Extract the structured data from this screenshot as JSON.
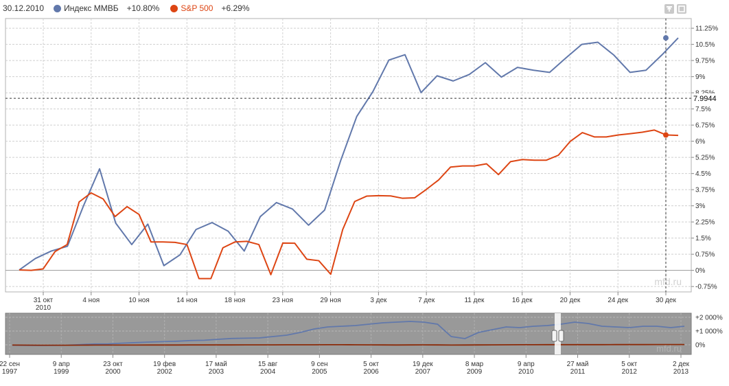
{
  "legend": {
    "date": "30.12.2010",
    "series": [
      {
        "name": "Индекс ММВБ",
        "change": "+10.80%",
        "color": "#6178ab"
      },
      {
        "name": "S&P 500",
        "change": "+6.29%",
        "color": "#dd4513"
      }
    ]
  },
  "crosshair": {
    "value_label": "7.9944"
  },
  "watermark": "mfd.ru",
  "toolbar": {
    "icons": [
      "pan-icon",
      "zoom-box-icon",
      "arrow-up-icon",
      "arrow-left-icon",
      "reset-icon",
      "arrow-right-icon",
      "arrow-down-icon",
      "zoom-in-icon",
      "zoom-out-icon",
      "export-icon",
      "maximize-icon"
    ]
  },
  "chart_data": [
    {
      "type": "line",
      "ylim": [
        -1.0,
        11.7
      ],
      "y_ticks": [
        -0.75,
        0,
        0.75,
        1.5,
        2.25,
        3,
        3.75,
        4.5,
        5.25,
        6,
        6.75,
        7.5,
        8.25,
        9,
        9.75,
        10.5,
        11.25
      ],
      "y_tick_labels": [
        "-0.75%",
        "0%",
        "0.75%",
        "1.5%",
        "2.25%",
        "3%",
        "3.75%",
        "4.5%",
        "5.25%",
        "6%",
        "6.75%",
        "7.5%",
        "8.25%",
        "9%",
        "9.75%",
        "10.5%",
        "11.25%"
      ],
      "x_ticks": [
        {
          "label": "31 окт",
          "sub": "2010"
        },
        {
          "label": "4 ноя",
          "sub": ""
        },
        {
          "label": "10 ноя",
          "sub": ""
        },
        {
          "label": "14 ноя",
          "sub": ""
        },
        {
          "label": "18 ноя",
          "sub": ""
        },
        {
          "label": "23 ноя",
          "sub": ""
        },
        {
          "label": "29 ноя",
          "sub": ""
        },
        {
          "label": "3 дек",
          "sub": ""
        },
        {
          "label": "7 дек",
          "sub": ""
        },
        {
          "label": "11 дек",
          "sub": ""
        },
        {
          "label": "16 дек",
          "sub": ""
        },
        {
          "label": "20 дек",
          "sub": ""
        },
        {
          "label": "24 дек",
          "sub": ""
        },
        {
          "label": "30 дек",
          "sub": ""
        }
      ],
      "series": [
        {
          "name": "Индекс ММВБ",
          "color": "#6178ab",
          "values": [
            0.02,
            0.55,
            0.9,
            1.12,
            3.0,
            4.72,
            2.2,
            1.2,
            2.15,
            0.22,
            0.72,
            1.9,
            2.22,
            1.82,
            0.9,
            2.5,
            3.15,
            2.85,
            2.1,
            2.8,
            5.1,
            7.15,
            8.3,
            9.77,
            10.02,
            8.26,
            9.04,
            8.8,
            9.1,
            9.65,
            8.98,
            9.43,
            9.3,
            9.2,
            9.86,
            10.5,
            10.6,
            10.0,
            9.2,
            9.3,
            10.02,
            10.8
          ]
        },
        {
          "name": "S&P 500",
          "color": "#dd4513",
          "values": [
            0.02,
            0.0,
            0.07,
            0.88,
            1.2,
            3.18,
            3.6,
            3.32,
            2.5,
            2.96,
            2.6,
            1.32,
            1.32,
            1.3,
            1.2,
            -0.38,
            -0.38,
            1.05,
            1.32,
            1.35,
            1.2,
            -0.2,
            1.27,
            1.26,
            0.52,
            0.45,
            -0.18,
            1.9,
            3.2,
            3.45,
            3.47,
            3.46,
            3.35,
            3.37,
            3.77,
            4.2,
            4.8,
            4.85,
            4.85,
            4.95,
            4.45,
            5.05,
            5.15,
            5.12,
            5.12,
            5.35,
            6.0,
            6.4,
            6.2,
            6.2,
            6.29,
            6.35,
            6.42,
            6.52,
            6.29,
            6.27
          ]
        }
      ]
    },
    {
      "type": "area",
      "ylim": [
        -700,
        2300
      ],
      "y_ticks": [
        0,
        1000,
        2000
      ],
      "y_tick_labels": [
        "0%",
        "+1 000%",
        "+2 000%"
      ],
      "x_ticks": [
        {
          "label": "22 сен",
          "sub": "1997"
        },
        {
          "label": "9 апр",
          "sub": "1999"
        },
        {
          "label": "23 окт",
          "sub": "2000"
        },
        {
          "label": "19 фев",
          "sub": "2002"
        },
        {
          "label": "17 май",
          "sub": "2003"
        },
        {
          "label": "15 авг",
          "sub": "2004"
        },
        {
          "label": "9 сен",
          "sub": "2005"
        },
        {
          "label": "5 окт",
          "sub": "2006"
        },
        {
          "label": "19 дек",
          "sub": "2007"
        },
        {
          "label": "8 мар",
          "sub": "2009"
        },
        {
          "label": "9 апр",
          "sub": "2010"
        },
        {
          "label": "27 май",
          "sub": "2011"
        },
        {
          "label": "5 окт",
          "sub": "2012"
        },
        {
          "label": "2 дек",
          "sub": "2013"
        }
      ],
      "selected_range": [
        "31 окт 2010",
        "30 дек 2010"
      ],
      "series": [
        {
          "name": "Индекс ММВБ",
          "color": "#6178ab",
          "values": [
            -30,
            -40,
            -50,
            -40,
            -30,
            20,
            60,
            70,
            120,
            160,
            200,
            230,
            260,
            310,
            330,
            400,
            460,
            480,
            500,
            600,
            700,
            900,
            1150,
            1300,
            1350,
            1400,
            1500,
            1600,
            1650,
            1700,
            1650,
            1500,
            600,
            450,
            900,
            1100,
            1300,
            1250,
            1350,
            1400,
            1500,
            1650,
            1550,
            1350,
            1300,
            1250,
            1350,
            1350,
            1250,
            1350
          ]
        },
        {
          "name": "S&P 500",
          "color": "#8b2a08",
          "values": [
            -20,
            -25,
            -30,
            -30,
            -30,
            -25,
            -20,
            -20,
            -20,
            -20,
            -15,
            -15,
            -15,
            -10,
            -10,
            -10,
            -10,
            -5,
            -5,
            -5,
            0,
            0,
            0,
            5,
            5,
            0,
            -5,
            -10,
            -15,
            -10,
            -5,
            -10,
            -20,
            -15,
            -10,
            -5,
            0,
            5,
            5,
            10,
            10,
            10,
            10,
            10,
            15,
            15,
            15,
            20,
            20,
            20
          ]
        }
      ]
    }
  ]
}
